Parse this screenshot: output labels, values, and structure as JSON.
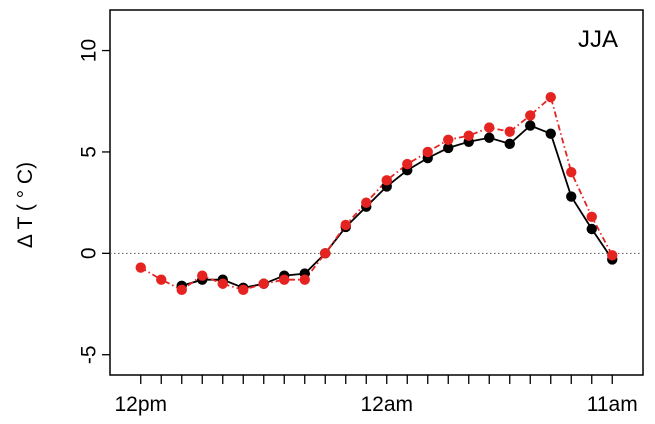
{
  "chart_data": {
    "type": "line",
    "panel_label": "JJA",
    "ylabel": "Δ T ( ° C)",
    "xlabel": "",
    "ylim": [
      -6,
      12
    ],
    "y_ticks": [
      -5,
      0,
      5,
      10
    ],
    "x_ticks": [
      {
        "x": 0,
        "label": "12pm"
      },
      {
        "x": 12,
        "label": "12am"
      },
      {
        "x": 23,
        "label": "11am"
      }
    ],
    "x_minor_ticks": [
      0,
      1,
      2,
      3,
      4,
      5,
      6,
      7,
      8,
      9,
      10,
      11,
      12,
      13,
      14,
      15,
      16,
      17,
      18,
      19,
      20,
      21,
      22,
      23
    ],
    "xlim": [
      -1.5,
      24.5
    ],
    "zero_line": 0,
    "series": [
      {
        "name": "",
        "color": "#e52421",
        "line_style": "dashdot",
        "x": [
          0,
          1,
          2,
          3,
          4,
          5,
          6,
          7,
          8,
          9,
          10,
          11,
          12,
          13,
          14,
          15,
          16,
          17,
          18,
          19,
          20,
          21,
          22,
          23
        ],
        "values": [
          -0.7,
          -1.3,
          -1.8,
          -1.1,
          -1.5,
          -1.8,
          -1.5,
          -1.3,
          -1.3,
          0.0,
          1.4,
          2.5,
          3.6,
          4.4,
          5.0,
          5.6,
          5.8,
          6.2,
          6.0,
          6.8,
          7.7,
          4.0,
          1.8,
          -0.1
        ]
      },
      {
        "name": "",
        "color": "#000000",
        "line_style": "solid",
        "x": [
          2,
          3,
          4,
          5,
          6,
          7,
          8,
          9,
          10,
          11,
          12,
          13,
          14,
          15,
          16,
          17,
          18,
          19,
          20,
          21,
          22,
          23
        ],
        "values": [
          -1.6,
          -1.3,
          -1.3,
          -1.7,
          -1.5,
          -1.1,
          -1.0,
          0.0,
          1.3,
          2.3,
          3.3,
          4.1,
          4.7,
          5.2,
          5.5,
          5.7,
          5.4,
          6.3,
          5.9,
          2.8,
          1.2,
          -0.3
        ]
      }
    ]
  }
}
